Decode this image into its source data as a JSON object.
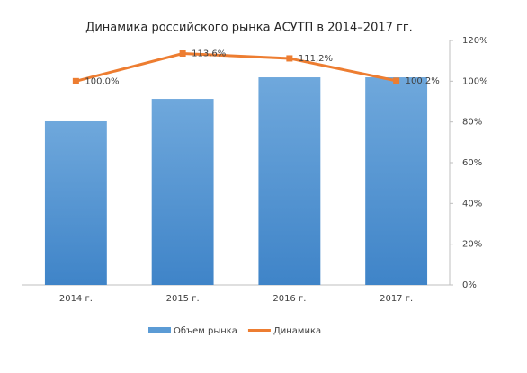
{
  "chart_data": {
    "type": "combo",
    "title": "Динамика российского рынка АСУТП в 2014–2017 гг.",
    "categories": [
      "2014 г.",
      "2015 г.",
      "2016 г.",
      "2017 г."
    ],
    "series": [
      {
        "name": "Объем рынка",
        "type": "bar",
        "color": "#5b9bd5",
        "values": [
          80.3,
          91.3,
          101.9,
          101.9
        ]
      },
      {
        "name": "Динамика",
        "type": "line",
        "color": "#ed7d31",
        "values": [
          100.0,
          113.6,
          111.2,
          100.2
        ],
        "value_labels": [
          "100,0%",
          "113,6%",
          "111,2%",
          "100,2%"
        ]
      }
    ],
    "ylim": [
      0,
      120
    ],
    "yticks": [
      {
        "value": 0,
        "label": "0%"
      },
      {
        "value": 20,
        "label": "20%"
      },
      {
        "value": 40,
        "label": "40%"
      },
      {
        "value": 60,
        "label": "60%"
      },
      {
        "value": 80,
        "label": "80%"
      },
      {
        "value": 100,
        "label": "100%"
      },
      {
        "value": 120,
        "label": "120%"
      }
    ],
    "legend": "bottom"
  }
}
